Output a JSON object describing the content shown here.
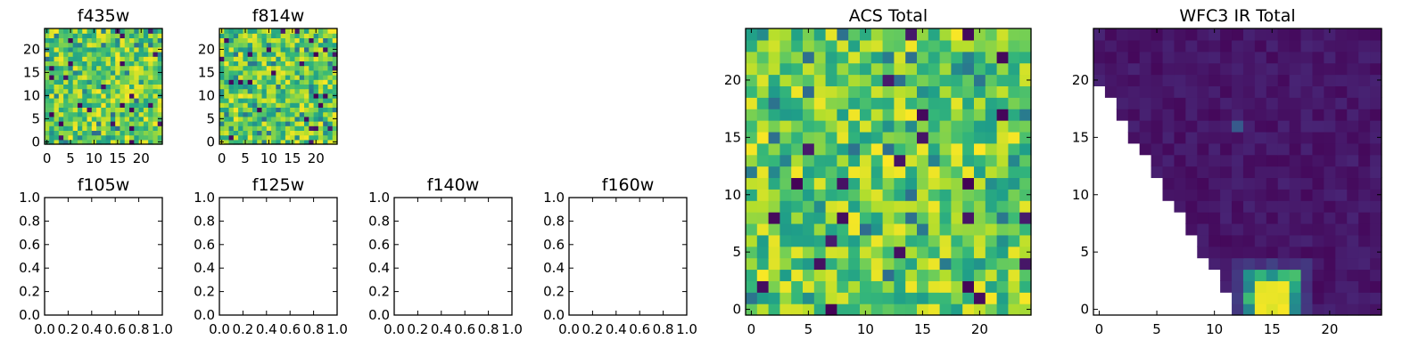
{
  "chart_data": [
    {
      "type": "heatmap",
      "title": "f435w",
      "colormap": "viridis",
      "grid_size": [
        25,
        25
      ],
      "xlim": [
        -0.5,
        24.5
      ],
      "ylim": [
        -0.5,
        24.5
      ],
      "xticks": [
        0,
        5,
        10,
        15,
        20
      ],
      "yticks": [
        0,
        5,
        10,
        15,
        20
      ],
      "pattern": "random noise, mostly green/yellow with scattered dark pixels"
    },
    {
      "type": "heatmap",
      "title": "f814w",
      "colormap": "viridis",
      "grid_size": [
        25,
        25
      ],
      "xlim": [
        -0.5,
        24.5
      ],
      "ylim": [
        -0.5,
        24.5
      ],
      "xticks": [
        0,
        5,
        10,
        15,
        20
      ],
      "yticks": [
        0,
        5,
        10,
        15,
        20
      ],
      "pattern": "random noise, mostly green/yellow with scattered dark pixels"
    },
    {
      "type": "heatmap",
      "title": "ACS Total",
      "colormap": "viridis",
      "grid_size": [
        25,
        25
      ],
      "xlim": [
        -0.5,
        24.5
      ],
      "ylim": [
        -0.5,
        24.5
      ],
      "xticks": [
        0,
        5,
        10,
        15,
        20
      ],
      "yticks": [
        0,
        5,
        10,
        15,
        20
      ],
      "pattern": "random noise, mostly green/yellow with scattered dark pixels"
    },
    {
      "type": "heatmap",
      "title": "WFC3 IR Total",
      "colormap": "viridis",
      "grid_size": [
        25,
        25
      ],
      "xlim": [
        -0.5,
        24.5
      ],
      "ylim": [
        -0.5,
        24.5
      ],
      "xticks": [
        0,
        5,
        10,
        15,
        20
      ],
      "yticks": [
        0,
        5,
        10,
        15,
        20
      ],
      "pattern": "mostly dark purple; blank (white) lower-left triangle; bright yellow blob near x=15, y=1"
    },
    {
      "type": "empty",
      "title": "f105w",
      "xlim": [
        0.0,
        1.0
      ],
      "ylim": [
        0.0,
        1.0
      ],
      "xticks": [
        "0.0",
        "0.2",
        "0.4",
        "0.6",
        "0.8",
        "1.0"
      ],
      "yticks": [
        "0.0",
        "0.2",
        "0.4",
        "0.6",
        "0.8",
        "1.0"
      ]
    },
    {
      "type": "empty",
      "title": "f125w",
      "xlim": [
        0.0,
        1.0
      ],
      "ylim": [
        0.0,
        1.0
      ],
      "xticks": [
        "0.0",
        "0.2",
        "0.4",
        "0.6",
        "0.8",
        "1.0"
      ],
      "yticks": [
        "0.0",
        "0.2",
        "0.4",
        "0.6",
        "0.8",
        "1.0"
      ]
    },
    {
      "type": "empty",
      "title": "f140w",
      "xlim": [
        0.0,
        1.0
      ],
      "ylim": [
        0.0,
        1.0
      ],
      "xticks": [
        "0.0",
        "0.2",
        "0.4",
        "0.6",
        "0.8",
        "1.0"
      ],
      "yticks": [
        "0.0",
        "0.2",
        "0.4",
        "0.6",
        "0.8",
        "1.0"
      ]
    },
    {
      "type": "empty",
      "title": "f160w",
      "xlim": [
        0.0,
        1.0
      ],
      "ylim": [
        0.0,
        1.0
      ],
      "xticks": [
        "0.0",
        "0.2",
        "0.4",
        "0.6",
        "0.8",
        "1.0"
      ],
      "yticks": [
        "0.0",
        "0.2",
        "0.4",
        "0.6",
        "0.8",
        "1.0"
      ]
    }
  ]
}
